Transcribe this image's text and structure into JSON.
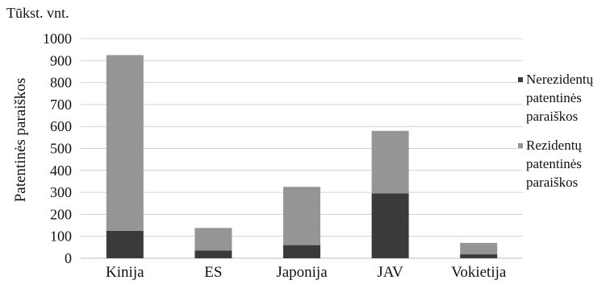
{
  "chart_data": {
    "type": "bar",
    "stacked": true,
    "unit_label": "Tūkst. vnt.",
    "ylabel": "Patentinės paraiškos",
    "xlabel": "",
    "ylim": [
      0,
      1000
    ],
    "yticks": [
      0,
      100,
      200,
      300,
      400,
      500,
      600,
      700,
      800,
      900,
      1000
    ],
    "grid": true,
    "legend_position": "right",
    "categories": [
      "Kinija",
      "ES",
      "Japonija",
      "JAV",
      "Vokietija"
    ],
    "series": [
      {
        "name_lines": [
          "Nerezidentų",
          "patentinės",
          "paraiškos"
        ],
        "color": "#3a3a3a",
        "values": [
          125,
          35,
          60,
          295,
          18
        ]
      },
      {
        "name_lines": [
          "Rezidentų",
          "patentinės",
          "paraiškos"
        ],
        "color": "#959595",
        "values": [
          800,
          103,
          265,
          285,
          52
        ]
      }
    ]
  }
}
